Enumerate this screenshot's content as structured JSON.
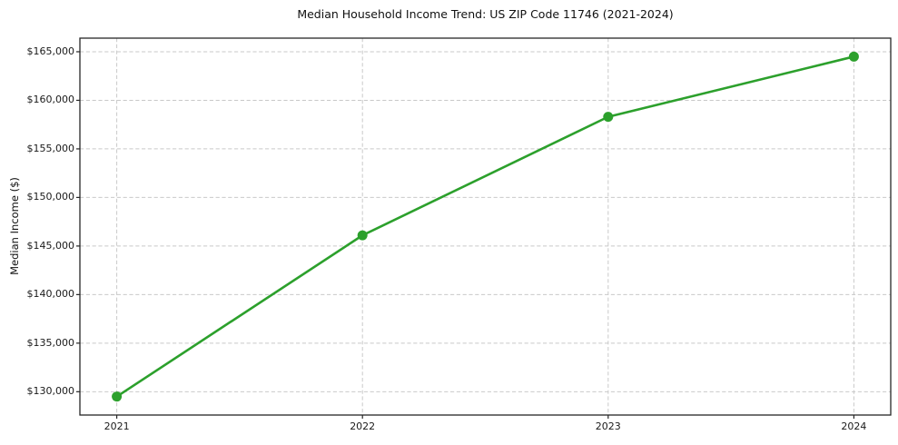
{
  "chart_data": {
    "type": "line",
    "title": "Median Household Income Trend: US ZIP Code 11746 (2021-2024)",
    "xlabel": "",
    "ylabel": "Median Income ($)",
    "x": [
      2021,
      2022,
      2023,
      2024
    ],
    "series": [
      {
        "name": "Median Income",
        "values": [
          129500,
          146100,
          158300,
          164500
        ]
      }
    ],
    "xlim": [
      2020.85,
      2024.15
    ],
    "ylim": [
      127600,
      166400
    ],
    "xticks": [
      2021,
      2022,
      2023,
      2024
    ],
    "xtick_labels": [
      "2021",
      "2022",
      "2023",
      "2024"
    ],
    "yticks": [
      130000,
      135000,
      140000,
      145000,
      150000,
      155000,
      160000,
      165000
    ],
    "ytick_labels": [
      "$130,000",
      "$135,000",
      "$140,000",
      "$145,000",
      "$150,000",
      "$155,000",
      "$160,000",
      "$165,000"
    ],
    "grid": true,
    "legend": false,
    "line_color": "#2ca02c",
    "marker": "circle",
    "marker_radius": 5.5,
    "background": "#ffffff"
  }
}
